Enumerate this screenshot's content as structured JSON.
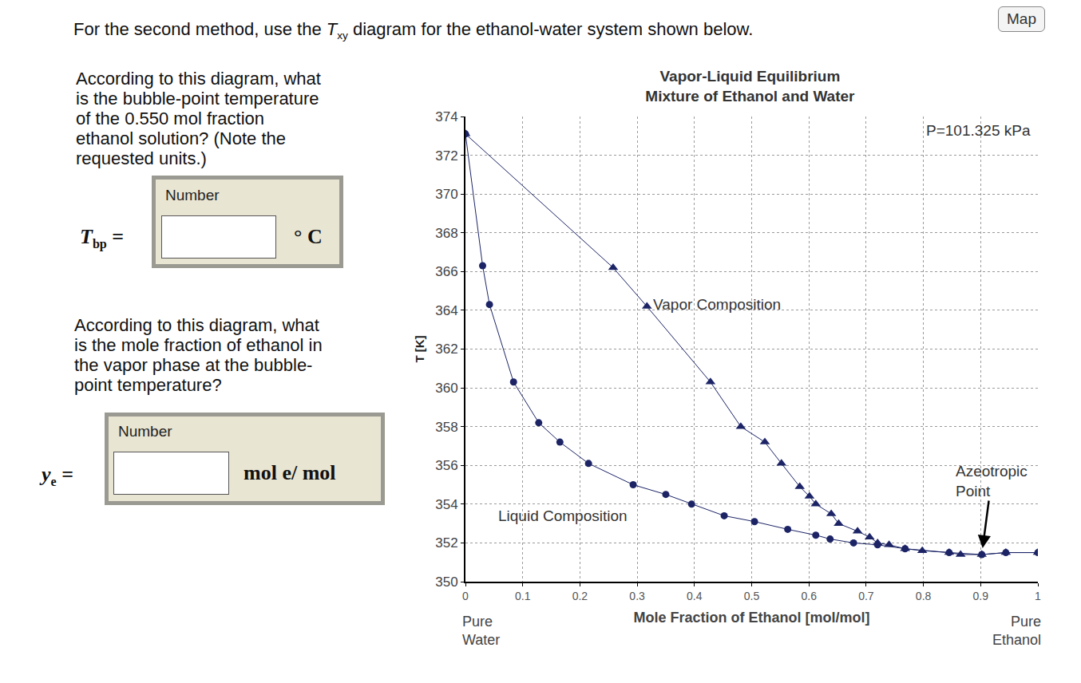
{
  "header": {
    "before": "For the second method, use the ",
    "symbol": "T",
    "subscript": "xy",
    "after": " diagram for the ethanol-water system shown below."
  },
  "button": "Map",
  "questions": [
    {
      "lines": [
        "According to this diagram, what",
        "is the bubble-point temperature",
        "of the 0.550 mol fraction",
        "ethanol solution? (Note the",
        "requested units.)"
      ],
      "input_label": "Number",
      "symbol": "T",
      "subscript": "bp",
      "unit": "° C"
    },
    {
      "lines": [
        "According to this diagram, what",
        "is the mole fraction of ethanol in",
        "the vapor phase at the bubble-",
        "point temperature?"
      ],
      "input_label": "Number",
      "symbol": "y",
      "subscript": "e",
      "unit": "mol  e/ mol"
    }
  ],
  "chart_data": {
    "type": "scatter",
    "title": [
      "Vapor-Liquid Equilibrium",
      "Mixture of Ethanol and Water"
    ],
    "x_label": "Mole Fraction of Ethanol [mol/mol]",
    "y_label": "T [K]",
    "xlim": [
      0,
      1
    ],
    "ylim": [
      350,
      374
    ],
    "xticks": [
      0,
      0.1,
      0.2,
      0.3,
      0.4,
      0.5,
      0.6,
      0.7,
      0.8,
      0.9,
      1
    ],
    "yticks": [
      350,
      352,
      354,
      356,
      358,
      360,
      362,
      364,
      366,
      368,
      370,
      372,
      374
    ],
    "grid": true,
    "series": [
      {
        "name": "Liquid Composition",
        "color": "#1c2466",
        "marker": "circle",
        "line_style": "solid",
        "x": [
          0,
          0.03,
          0.042,
          0.084,
          0.128,
          0.165,
          0.215,
          0.293,
          0.35,
          0.395,
          0.452,
          0.505,
          0.563,
          0.612,
          0.637,
          0.678,
          0.72,
          0.768,
          0.845,
          0.902,
          0.944,
          1
        ],
        "values": [
          373.1,
          366.3,
          364.3,
          360.3,
          358.2,
          357.2,
          356.1,
          355.0,
          354.5,
          354.0,
          353.4,
          353.1,
          352.7,
          352.4,
          352.2,
          352.0,
          351.9,
          351.7,
          351.5,
          351.4,
          351.5,
          351.5
        ]
      },
      {
        "name": "Vapor Composition",
        "color": "#1c2466",
        "marker": "triangle-up",
        "line_style": "solid",
        "x": [
          0,
          0.258,
          0.317,
          0.428,
          0.481,
          0.523,
          0.552,
          0.584,
          0.601,
          0.612,
          0.639,
          0.652,
          0.685,
          0.706,
          0.72,
          0.74,
          0.768,
          0.798,
          0.845,
          0.865,
          0.902,
          0.944,
          1
        ],
        "values": [
          373.1,
          366.2,
          364.2,
          360.3,
          358.0,
          357.2,
          356.1,
          354.9,
          354.4,
          354.0,
          353.5,
          353.0,
          352.6,
          352.3,
          352.0,
          351.9,
          351.7,
          351.6,
          351.5,
          351.4,
          351.4,
          351.5,
          351.5
        ]
      }
    ],
    "annotations": [
      {
        "text": [
          "Vapor Composition"
        ],
        "x": 0.325,
        "y": 364.3
      },
      {
        "text": [
          "Liquid Composition"
        ],
        "x": 0.054,
        "y": 353.4
      },
      {
        "text": [
          "P=101.325 kPa"
        ],
        "x": 0.99,
        "y": 373.3
      },
      {
        "text": [
          "Azeotropic",
          "Point"
        ],
        "x": 0.902,
        "y": 351.4,
        "arrow": true
      }
    ],
    "axis_end_labels": [
      {
        "text": [
          "Pure",
          "Water"
        ],
        "x": 0
      },
      {
        "text": [
          "Pure",
          "Ethanol"
        ],
        "x": 1
      }
    ]
  }
}
